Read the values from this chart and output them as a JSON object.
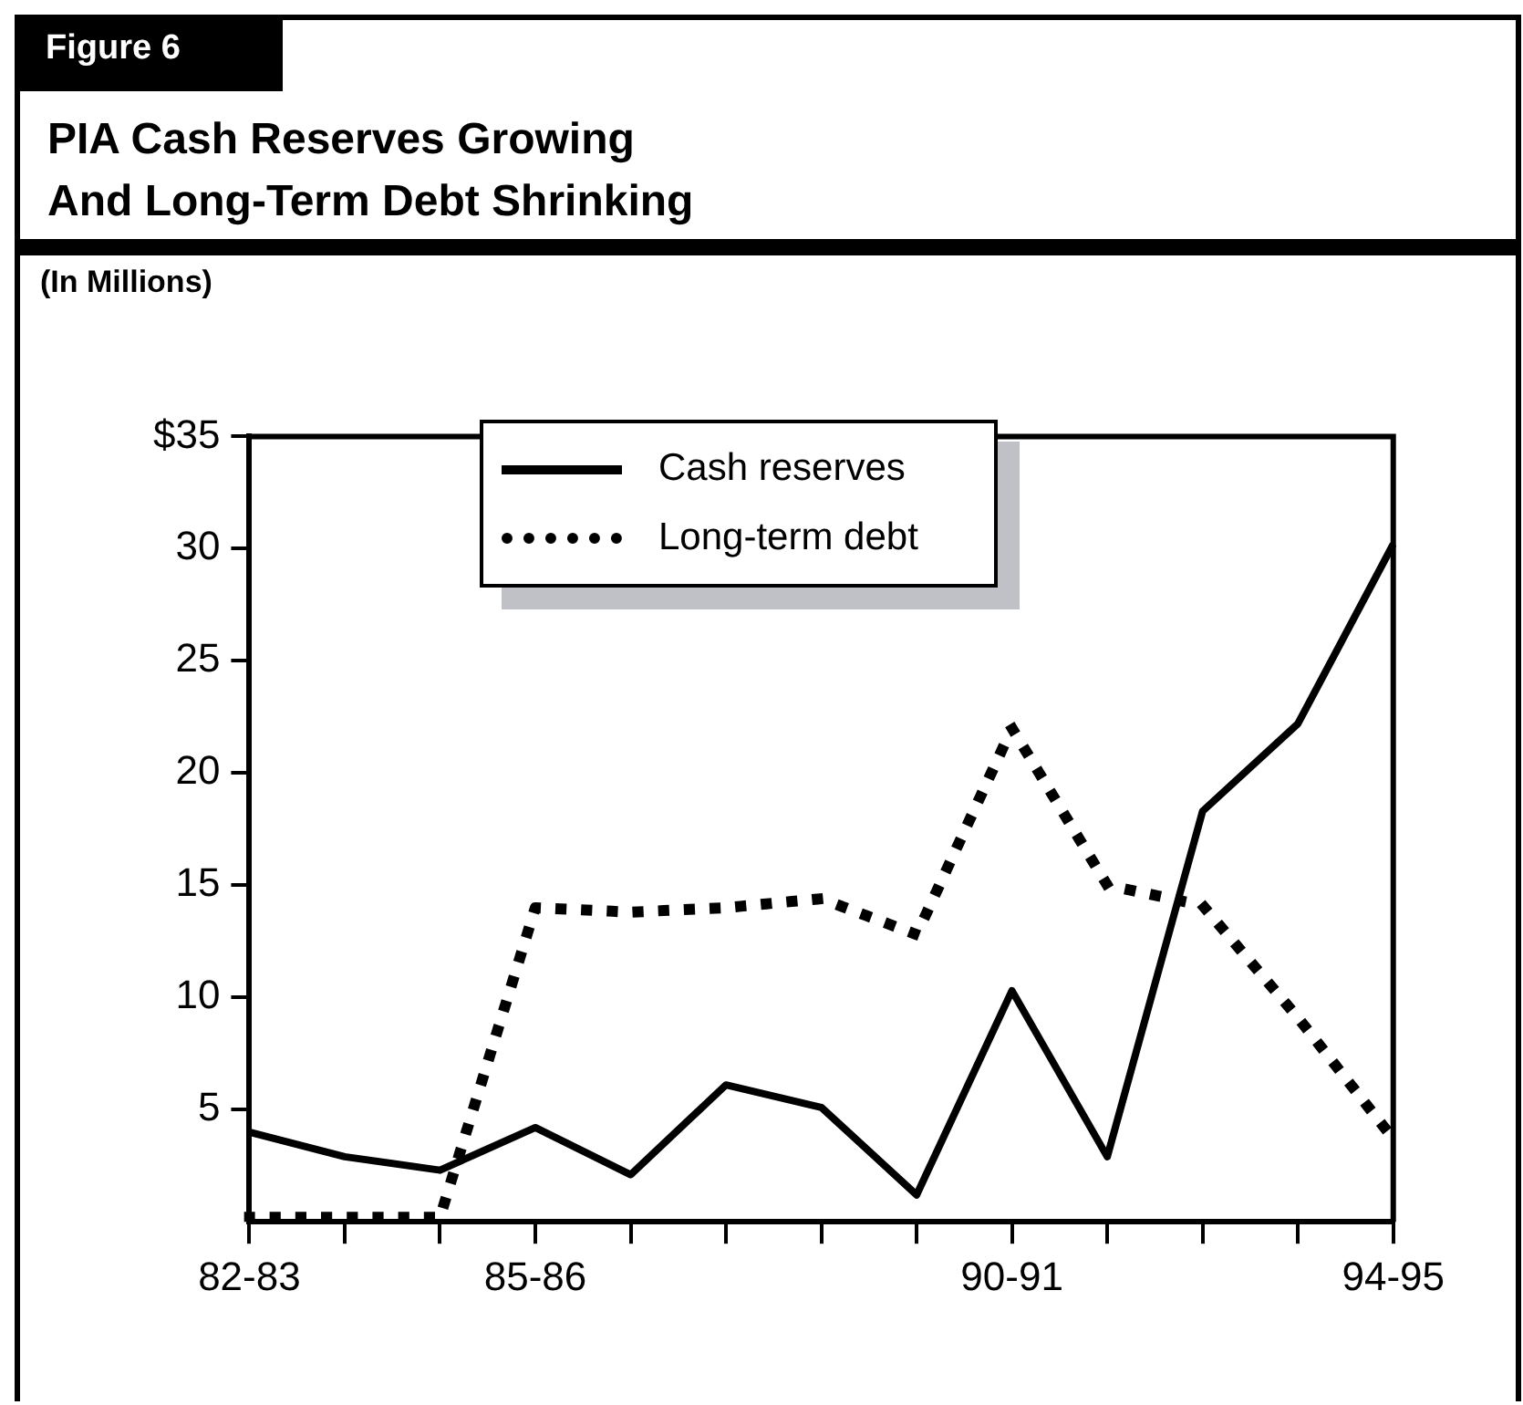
{
  "chart_data": {
    "type": "line",
    "title": "PIA Cash Reserves Growing\nAnd Long-Term Debt Shrinking",
    "subtitle": "(In Millions)",
    "annotations": [
      "Figure 6"
    ],
    "categories": [
      "82-83",
      null,
      null,
      "85-86",
      null,
      null,
      null,
      null,
      "90-91",
      null,
      null,
      null,
      "94-95"
    ],
    "series": [
      {
        "name": "Cash reserves",
        "color": "#000000",
        "line_style": "solid",
        "values": [
          4.0,
          2.9,
          2.3,
          4.2,
          2.1,
          6.1,
          5.1,
          1.2,
          10.3,
          2.9,
          18.3,
          22.2,
          30.2
        ]
      },
      {
        "name": "Long-term debt",
        "color": "#000000",
        "line_style": "dotted",
        "values": [
          0.2,
          0.2,
          0.2,
          14.0,
          13.8,
          14.0,
          14.4,
          12.8,
          22.0,
          15.0,
          14.1,
          9.1,
          3.7
        ]
      }
    ],
    "ylim": [
      0,
      35
    ],
    "yticks": [
      5,
      10,
      15,
      20,
      25,
      30,
      {
        "value": 35,
        "label": "$35"
      }
    ],
    "grid": false,
    "legend": "top",
    "marker": "none"
  }
}
